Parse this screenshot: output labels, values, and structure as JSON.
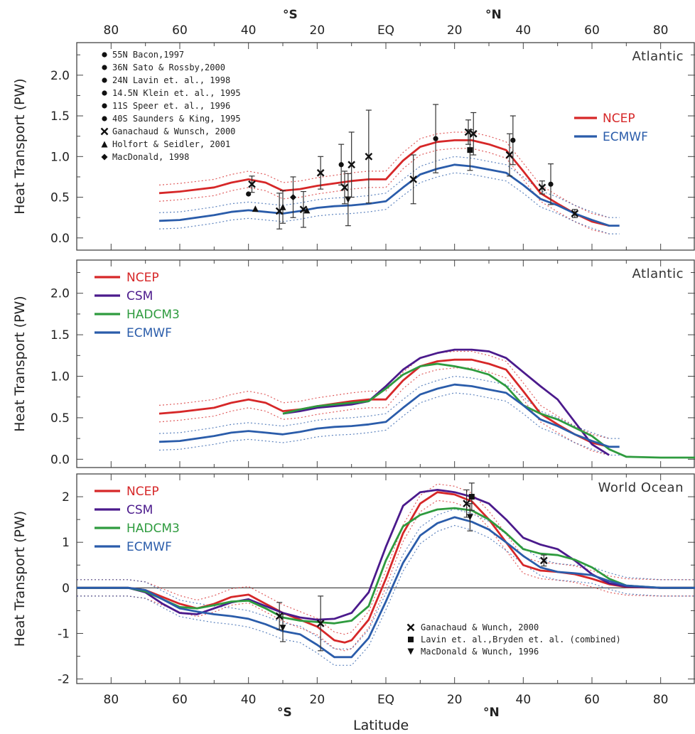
{
  "figure": {
    "top_axis": {
      "ticks": [
        "80",
        "60",
        "40",
        "20",
        "EQ",
        "20",
        "40",
        "60",
        "80"
      ],
      "south": "°S",
      "north": "°N"
    },
    "bottom_axis": {
      "ticks": [
        "80",
        "60",
        "40",
        "20",
        "EQ",
        "20",
        "40",
        "60",
        "80"
      ],
      "south": "°S",
      "north": "°N",
      "label": "Latitude"
    }
  },
  "chart_data": [
    {
      "type": "line",
      "title": "Atlantic",
      "ylabel": "Heat Transport (PW)",
      "xlabel": "",
      "xlim": [
        -90,
        90
      ],
      "ylim": [
        -0.15,
        2.4
      ],
      "yticks": [
        "0.0",
        "0.5",
        "1.0",
        "1.5",
        "2.0"
      ],
      "observation_legend": [
        "55N Bacon,1997",
        "36N Sato & Rossby,2000",
        "24N Lavin et. al., 1998",
        "14.5N Klein et. al., 1995",
        "11S Speer et. al., 1996",
        "40S Saunders & King, 1995",
        "Ganachaud & Wunsch, 2000",
        "Holfort & Seidler, 2001",
        "MacDonald, 1998"
      ],
      "series": [
        {
          "name": "NCEP",
          "color": "#d62728",
          "x": [
            -66,
            -60,
            -50,
            -45,
            -40,
            -35,
            -30,
            -25,
            -20,
            -15,
            -10,
            -5,
            0,
            5,
            10,
            15,
            20,
            25,
            30,
            35,
            40,
            45,
            50,
            55,
            60,
            65
          ],
          "y": [
            0.55,
            0.57,
            0.62,
            0.68,
            0.72,
            0.68,
            0.58,
            0.6,
            0.64,
            0.67,
            0.7,
            0.72,
            0.72,
            0.95,
            1.12,
            1.18,
            1.2,
            1.2,
            1.15,
            1.08,
            0.82,
            0.55,
            0.42,
            0.3,
            0.2,
            0.15
          ]
        },
        {
          "name": "ECMWF",
          "color": "#2a5caa",
          "x": [
            -66,
            -60,
            -50,
            -45,
            -40,
            -35,
            -30,
            -25,
            -20,
            -15,
            -10,
            -5,
            0,
            5,
            10,
            15,
            20,
            25,
            30,
            35,
            40,
            45,
            50,
            55,
            60,
            65,
            68
          ],
          "y": [
            0.21,
            0.22,
            0.28,
            0.32,
            0.34,
            0.32,
            0.3,
            0.33,
            0.37,
            0.39,
            0.4,
            0.42,
            0.45,
            0.62,
            0.78,
            0.85,
            0.9,
            0.88,
            0.84,
            0.8,
            0.65,
            0.48,
            0.4,
            0.3,
            0.22,
            0.15,
            0.15
          ]
        }
      ],
      "dotted_bands": [
        {
          "color": "#d62728",
          "offset": 0.1
        },
        {
          "color": "#2a5caa",
          "offset": 0.1
        }
      ],
      "observations": [
        {
          "x": -40,
          "y": 0.54,
          "err": 0,
          "marker": "circle"
        },
        {
          "x": -39,
          "y": 0.66,
          "err": 0.1,
          "marker": "x"
        },
        {
          "x": -38,
          "y": 0.36,
          "err": 0,
          "marker": "triangle"
        },
        {
          "x": -31,
          "y": 0.33,
          "err": 0.22,
          "marker": "x"
        },
        {
          "x": -30,
          "y": 0.38,
          "err": 0.2,
          "marker": "triangle"
        },
        {
          "x": -27,
          "y": 0.5,
          "err": 0.25,
          "marker": "diamond"
        },
        {
          "x": -24,
          "y": 0.35,
          "err": 0.22,
          "marker": "x"
        },
        {
          "x": -23,
          "y": 0.34,
          "err": 0,
          "marker": "triangle"
        },
        {
          "x": -19,
          "y": 0.8,
          "err": 0.2,
          "marker": "x"
        },
        {
          "x": -13,
          "y": 0.9,
          "err": 0.25,
          "marker": "circle"
        },
        {
          "x": -12,
          "y": 0.62,
          "err": 0.2,
          "marker": "x"
        },
        {
          "x": -11,
          "y": 0.47,
          "err": 0.32,
          "marker": "triangle_down"
        },
        {
          "x": -10,
          "y": 0.9,
          "err": 0.4,
          "marker": "x"
        },
        {
          "x": -5,
          "y": 1.0,
          "err": 0.57,
          "marker": "x"
        },
        {
          "x": 8,
          "y": 0.72,
          "err": 0.3,
          "marker": "x"
        },
        {
          "x": 14.5,
          "y": 1.22,
          "err": 0.42,
          "marker": "circle"
        },
        {
          "x": 24,
          "y": 1.3,
          "err": 0.15,
          "marker": "x"
        },
        {
          "x": 24.5,
          "y": 1.08,
          "err": 0.25,
          "marker": "square"
        },
        {
          "x": 25.5,
          "y": 1.28,
          "err": 0.26,
          "marker": "x"
        },
        {
          "x": 36,
          "y": 1.02,
          "err": 0.26,
          "marker": "x"
        },
        {
          "x": 37,
          "y": 1.2,
          "err": 0.3,
          "marker": "circle"
        },
        {
          "x": 45.5,
          "y": 0.62,
          "err": 0.08,
          "marker": "x"
        },
        {
          "x": 48,
          "y": 0.66,
          "err": 0.25,
          "marker": "circle"
        },
        {
          "x": 55,
          "y": 0.3,
          "err": 0.05,
          "marker": "x"
        }
      ]
    },
    {
      "type": "line",
      "title": "Atlantic",
      "ylabel": "Heat Transport (PW)",
      "xlabel": "",
      "xlim": [
        -90,
        90
      ],
      "ylim": [
        -0.1,
        2.4
      ],
      "yticks": [
        "0.0",
        "0.5",
        "1.0",
        "1.5",
        "2.0"
      ],
      "series": [
        {
          "name": "NCEP",
          "color": "#d62728",
          "x": [
            -66,
            -60,
            -50,
            -45,
            -40,
            -35,
            -30,
            -25,
            -20,
            -15,
            -10,
            -5,
            0,
            5,
            10,
            15,
            20,
            25,
            30,
            35,
            40,
            45,
            50,
            55,
            60,
            65
          ],
          "y": [
            0.55,
            0.57,
            0.62,
            0.68,
            0.72,
            0.68,
            0.58,
            0.6,
            0.64,
            0.67,
            0.7,
            0.72,
            0.72,
            0.95,
            1.12,
            1.18,
            1.2,
            1.2,
            1.15,
            1.08,
            0.82,
            0.55,
            0.42,
            0.3,
            0.2,
            0.15
          ]
        },
        {
          "name": "CSM",
          "color": "#4b1a8c",
          "x": [
            -30,
            -25,
            -20,
            -15,
            -10,
            -5,
            0,
            5,
            10,
            15,
            20,
            25,
            30,
            35,
            40,
            45,
            50,
            55,
            60,
            65
          ],
          "y": [
            0.55,
            0.58,
            0.62,
            0.64,
            0.66,
            0.7,
            0.88,
            1.08,
            1.22,
            1.28,
            1.32,
            1.32,
            1.3,
            1.22,
            1.05,
            0.88,
            0.72,
            0.45,
            0.18,
            0.05
          ]
        },
        {
          "name": "HADCM3",
          "color": "#2e9b3e",
          "x": [
            -30,
            -25,
            -20,
            -15,
            -10,
            -5,
            0,
            5,
            10,
            15,
            20,
            25,
            30,
            35,
            40,
            45,
            50,
            55,
            60,
            65,
            70,
            80,
            90
          ],
          "y": [
            0.55,
            0.6,
            0.64,
            0.66,
            0.68,
            0.7,
            0.85,
            1.02,
            1.12,
            1.15,
            1.12,
            1.08,
            1.02,
            0.88,
            0.65,
            0.55,
            0.48,
            0.38,
            0.28,
            0.12,
            0.03,
            0.02,
            0.02
          ]
        },
        {
          "name": "ECMWF",
          "color": "#2a5caa",
          "x": [
            -66,
            -60,
            -50,
            -45,
            -40,
            -35,
            -30,
            -25,
            -20,
            -15,
            -10,
            -5,
            0,
            5,
            10,
            15,
            20,
            25,
            30,
            35,
            40,
            45,
            50,
            55,
            60,
            65,
            68
          ],
          "y": [
            0.21,
            0.22,
            0.28,
            0.32,
            0.34,
            0.32,
            0.3,
            0.33,
            0.37,
            0.39,
            0.4,
            0.42,
            0.45,
            0.62,
            0.78,
            0.85,
            0.9,
            0.88,
            0.84,
            0.8,
            0.65,
            0.48,
            0.4,
            0.3,
            0.22,
            0.15,
            0.15
          ]
        }
      ],
      "dotted_bands": [
        {
          "color": "#d62728",
          "offset": 0.1
        },
        {
          "color": "#2a5caa",
          "offset": 0.1
        }
      ]
    },
    {
      "type": "line",
      "title": "World Ocean",
      "ylabel": "Heat Transport (PW)",
      "xlabel": "Latitude",
      "xlim": [
        -90,
        90
      ],
      "ylim": [
        -2.1,
        2.5
      ],
      "yticks": [
        "-2",
        "-1",
        "0",
        "1",
        "2"
      ],
      "observation_legend": [
        "Ganachaud & Wunch, 2000",
        "Lavin et. al.,Bryden et. al. (combined)",
        "MacDonald & Wunch, 1996"
      ],
      "series": [
        {
          "name": "NCEP",
          "color": "#d62728",
          "x": [
            -90,
            -80,
            -75,
            -70,
            -65,
            -60,
            -55,
            -50,
            -45,
            -40,
            -35,
            -30,
            -25,
            -20,
            -15,
            -12,
            -10,
            -5,
            0,
            5,
            10,
            15,
            20,
            25,
            30,
            35,
            40,
            45,
            50,
            55,
            60,
            65,
            70,
            80,
            90
          ],
          "y": [
            0,
            0,
            0,
            -0.05,
            -0.2,
            -0.35,
            -0.45,
            -0.35,
            -0.2,
            -0.15,
            -0.35,
            -0.55,
            -0.7,
            -0.85,
            -1.15,
            -1.2,
            -1.15,
            -0.7,
            0.2,
            1.2,
            1.85,
            2.1,
            2.05,
            1.9,
            1.5,
            1.0,
            0.5,
            0.38,
            0.35,
            0.3,
            0.2,
            0.08,
            0.02,
            0,
            0
          ]
        },
        {
          "name": "CSM",
          "color": "#4b1a8c",
          "x": [
            -90,
            -80,
            -75,
            -70,
            -65,
            -60,
            -55,
            -50,
            -45,
            -40,
            -35,
            -30,
            -25,
            -20,
            -15,
            -10,
            -5,
            0,
            5,
            10,
            15,
            20,
            25,
            30,
            35,
            40,
            45,
            50,
            55,
            60,
            65,
            70,
            80,
            90
          ],
          "y": [
            0,
            0,
            0,
            -0.1,
            -0.35,
            -0.55,
            -0.58,
            -0.45,
            -0.32,
            -0.25,
            -0.4,
            -0.55,
            -0.65,
            -0.7,
            -0.68,
            -0.55,
            -0.1,
            0.9,
            1.8,
            2.1,
            2.15,
            2.1,
            2.0,
            1.85,
            1.5,
            1.1,
            0.95,
            0.85,
            0.6,
            0.3,
            0.1,
            0.03,
            0,
            0
          ]
        },
        {
          "name": "HADCM3",
          "color": "#2e9b3e",
          "x": [
            -90,
            -80,
            -75,
            -70,
            -65,
            -60,
            -55,
            -50,
            -45,
            -40,
            -35,
            -30,
            -25,
            -20,
            -15,
            -10,
            -5,
            0,
            5,
            10,
            15,
            20,
            25,
            30,
            35,
            40,
            45,
            50,
            55,
            60,
            65,
            70,
            80,
            90
          ],
          "y": [
            0,
            0,
            0,
            -0.08,
            -0.25,
            -0.42,
            -0.45,
            -0.38,
            -0.3,
            -0.28,
            -0.45,
            -0.65,
            -0.72,
            -0.75,
            -0.78,
            -0.72,
            -0.4,
            0.6,
            1.35,
            1.6,
            1.72,
            1.75,
            1.7,
            1.5,
            1.2,
            0.85,
            0.75,
            0.72,
            0.62,
            0.45,
            0.2,
            0.05,
            0,
            0
          ]
        },
        {
          "name": "ECMWF",
          "color": "#2a5caa",
          "x": [
            -90,
            -80,
            -75,
            -70,
            -65,
            -60,
            -55,
            -50,
            -45,
            -40,
            -35,
            -30,
            -25,
            -20,
            -15,
            -10,
            -5,
            0,
            5,
            10,
            15,
            20,
            25,
            30,
            35,
            40,
            45,
            50,
            55,
            60,
            65,
            70,
            80,
            90
          ],
          "y": [
            0,
            0,
            0,
            -0.05,
            -0.25,
            -0.45,
            -0.52,
            -0.58,
            -0.62,
            -0.68,
            -0.8,
            -0.95,
            -1.02,
            -1.25,
            -1.52,
            -1.52,
            -1.1,
            -0.3,
            0.55,
            1.15,
            1.42,
            1.55,
            1.45,
            1.28,
            1.0,
            0.7,
            0.45,
            0.35,
            0.32,
            0.28,
            0.15,
            0.05,
            0,
            0
          ]
        }
      ],
      "dotted_bands": [
        {
          "color": "#d62728",
          "offset": 0.18
        },
        {
          "color": "#2a5caa",
          "offset": 0.18
        }
      ],
      "observations": [
        {
          "x": -31,
          "y": -0.62,
          "err": 0.3,
          "marker": "x"
        },
        {
          "x": -30,
          "y": -0.88,
          "err": 0.3,
          "marker": "triangle_down"
        },
        {
          "x": -19,
          "y": -0.78,
          "err": 0.6,
          "marker": "x"
        },
        {
          "x": 23.5,
          "y": 1.85,
          "err": 0.3,
          "marker": "x"
        },
        {
          "x": 24.5,
          "y": 1.55,
          "err": 0.3,
          "marker": "triangle_down"
        },
        {
          "x": 25,
          "y": 2.0,
          "err": 0.3,
          "marker": "square"
        },
        {
          "x": 46,
          "y": 0.6,
          "err": 0.12,
          "marker": "x"
        }
      ]
    }
  ]
}
